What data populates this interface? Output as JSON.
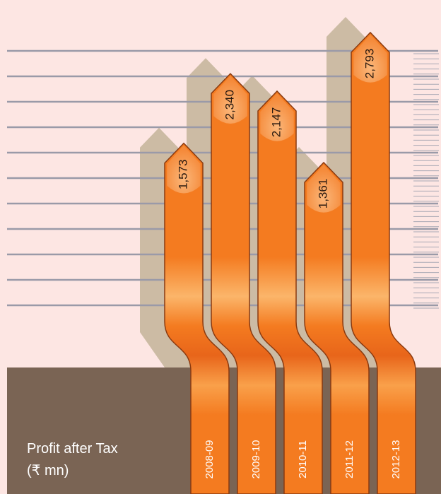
{
  "chart_data": {
    "type": "bar",
    "title": "Profit after Tax (₹ mn)",
    "categories": [
      "2008-09",
      "2009-10",
      "2010-11",
      "2011-12",
      "2012-13"
    ],
    "values": [
      1573,
      2340,
      2147,
      1361,
      2793
    ],
    "value_labels": [
      "1,573",
      "2,340",
      "2,147",
      "1,361",
      "2,793"
    ],
    "color": "#f47b20"
  }
}
